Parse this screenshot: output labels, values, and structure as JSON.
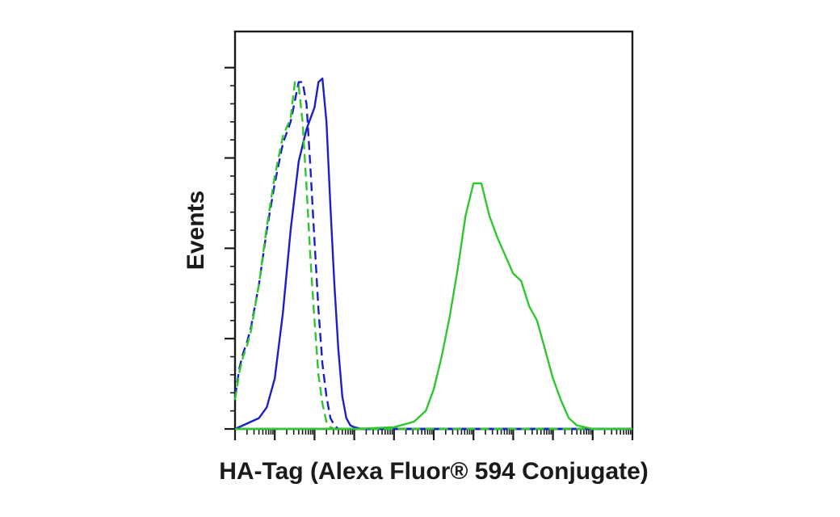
{
  "chart_data": {
    "type": "line",
    "title": "",
    "xlabel": "HA-Tag (Alexa Fluor® 594 Conjugate)",
    "ylabel": "Events",
    "x_scale": "log",
    "xlim": [
      1,
      10000000000
    ],
    "ylim": [
      0,
      1.1
    ],
    "tick_labels_shown": false,
    "grid": false,
    "legend": "none",
    "series": [
      {
        "color": "#1a1fc9",
        "style": "solid",
        "x": [
          1,
          1.6,
          2.5,
          4,
          6.3,
          10,
          16,
          25,
          40,
          63,
          100,
          126,
          158,
          200,
          250,
          316,
          398,
          501,
          631,
          794,
          1000,
          1585,
          2512,
          10000,
          1000000,
          10000000000
        ],
        "y": [
          0.0,
          0.01,
          0.02,
          0.03,
          0.06,
          0.14,
          0.32,
          0.55,
          0.74,
          0.83,
          0.89,
          0.96,
          0.97,
          0.85,
          0.62,
          0.4,
          0.22,
          0.09,
          0.03,
          0.01,
          0.005,
          0.0,
          0.0,
          0.0,
          0.0,
          0.0
        ]
      },
      {
        "color": "#1a1fc9",
        "style": "dashed",
        "x": [
          1,
          1.3,
          1.6,
          2,
          2.5,
          4,
          6.3,
          10,
          16,
          25,
          40,
          50,
          63,
          79,
          100,
          126,
          158,
          200,
          251,
          316,
          398,
          631,
          1000,
          10000,
          10000000000
        ],
        "y": [
          0.09,
          0.17,
          0.21,
          0.24,
          0.28,
          0.4,
          0.55,
          0.68,
          0.79,
          0.85,
          0.96,
          0.96,
          0.9,
          0.72,
          0.52,
          0.33,
          0.18,
          0.09,
          0.03,
          0.01,
          0.0,
          0.0,
          0.0,
          0.0,
          0.0
        ]
      },
      {
        "color": "#2ec82e",
        "style": "dashed",
        "x": [
          1,
          1.3,
          1.6,
          2,
          2.5,
          4,
          6.3,
          10,
          16,
          25,
          32,
          40,
          50,
          63,
          79,
          100,
          126,
          158,
          200,
          251,
          316,
          631,
          1000,
          10000,
          10000000000
        ],
        "y": [
          0.08,
          0.16,
          0.2,
          0.23,
          0.27,
          0.4,
          0.56,
          0.7,
          0.81,
          0.86,
          0.96,
          0.95,
          0.85,
          0.67,
          0.47,
          0.3,
          0.15,
          0.07,
          0.02,
          0.005,
          0.0,
          0.0,
          0.0,
          0.0,
          0.0
        ]
      },
      {
        "color": "#2ec82e",
        "style": "solid",
        "x": [
          1,
          1000,
          10000,
          31623,
          63096,
          100000,
          158489,
          251189,
          398107,
          630957,
          1000000,
          1584893,
          2511886,
          3981072,
          6309573,
          10000000,
          15848932,
          25118864,
          39810717,
          63095734,
          100000000,
          158489319,
          251188643,
          398107171,
          1000000000,
          10000000000
        ],
        "y": [
          0.0,
          0.0,
          0.005,
          0.02,
          0.05,
          0.11,
          0.2,
          0.31,
          0.44,
          0.59,
          0.68,
          0.68,
          0.59,
          0.53,
          0.48,
          0.43,
          0.41,
          0.34,
          0.3,
          0.22,
          0.14,
          0.08,
          0.03,
          0.01,
          0.0,
          0.0
        ]
      }
    ]
  }
}
